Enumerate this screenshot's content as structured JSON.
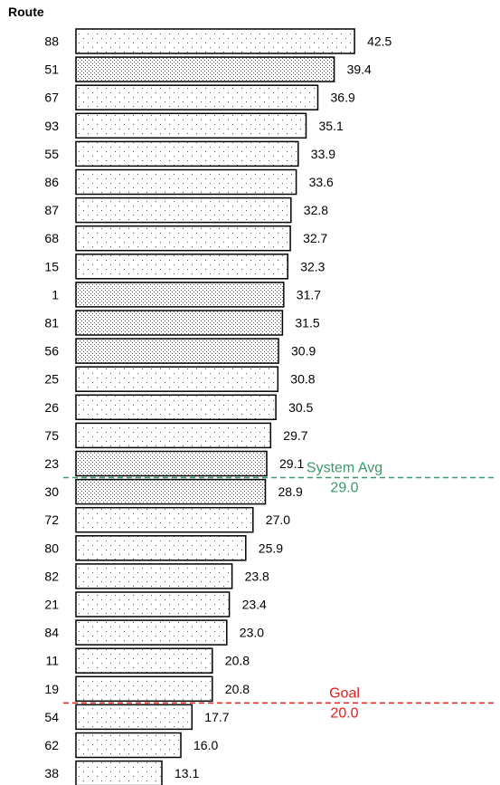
{
  "chart_data": {
    "type": "bar",
    "orientation": "horizontal",
    "title": "",
    "ylabel": "Route",
    "xlabel": "",
    "categories": [
      "88",
      "51",
      "67",
      "93",
      "55",
      "86",
      "87",
      "68",
      "15",
      "1",
      "81",
      "56",
      "25",
      "26",
      "75",
      "23",
      "30",
      "72",
      "80",
      "82",
      "21",
      "84",
      "11",
      "19",
      "54",
      "62",
      "38"
    ],
    "values": [
      42.5,
      39.4,
      36.9,
      35.1,
      33.9,
      33.6,
      32.8,
      32.7,
      32.3,
      31.7,
      31.5,
      30.9,
      30.8,
      30.5,
      29.7,
      29.1,
      28.9,
      27.0,
      25.9,
      23.8,
      23.4,
      23.0,
      20.8,
      20.8,
      17.7,
      16.0,
      13.1
    ],
    "value_labels": [
      "42.5",
      "39.4",
      "36.9",
      "35.1",
      "33.9",
      "33.6",
      "32.8",
      "32.7",
      "32.3",
      "31.7",
      "31.5",
      "30.9",
      "30.8",
      "30.5",
      "29.7",
      "29.1",
      "28.9",
      "27.0",
      "25.9",
      "23.8",
      "23.4",
      "23.0",
      "20.8",
      "20.8",
      "17.7",
      "16.0",
      "13.1"
    ],
    "patterns": [
      "sparse",
      "dense",
      "sparse",
      "sparse",
      "sparse",
      "sparse",
      "sparse",
      "sparse",
      "sparse",
      "dense",
      "dense",
      "dense",
      "sparse",
      "sparse",
      "sparse",
      "dense",
      "dense",
      "sparse",
      "sparse",
      "sparse",
      "sparse",
      "sparse",
      "sparse",
      "sparse",
      "sparse",
      "sparse",
      "sparse"
    ],
    "xlim": [
      0,
      48
    ],
    "grid": false,
    "legend": "none",
    "reference_lines": [
      {
        "name": "System Avg",
        "value": 29.0,
        "label": "System Avg",
        "value_label": "29.0",
        "color": "#3a9a6a"
      },
      {
        "name": "Goal",
        "value": 20.0,
        "label": "Goal",
        "value_label": "20.0",
        "color": "#e0201e"
      }
    ]
  }
}
